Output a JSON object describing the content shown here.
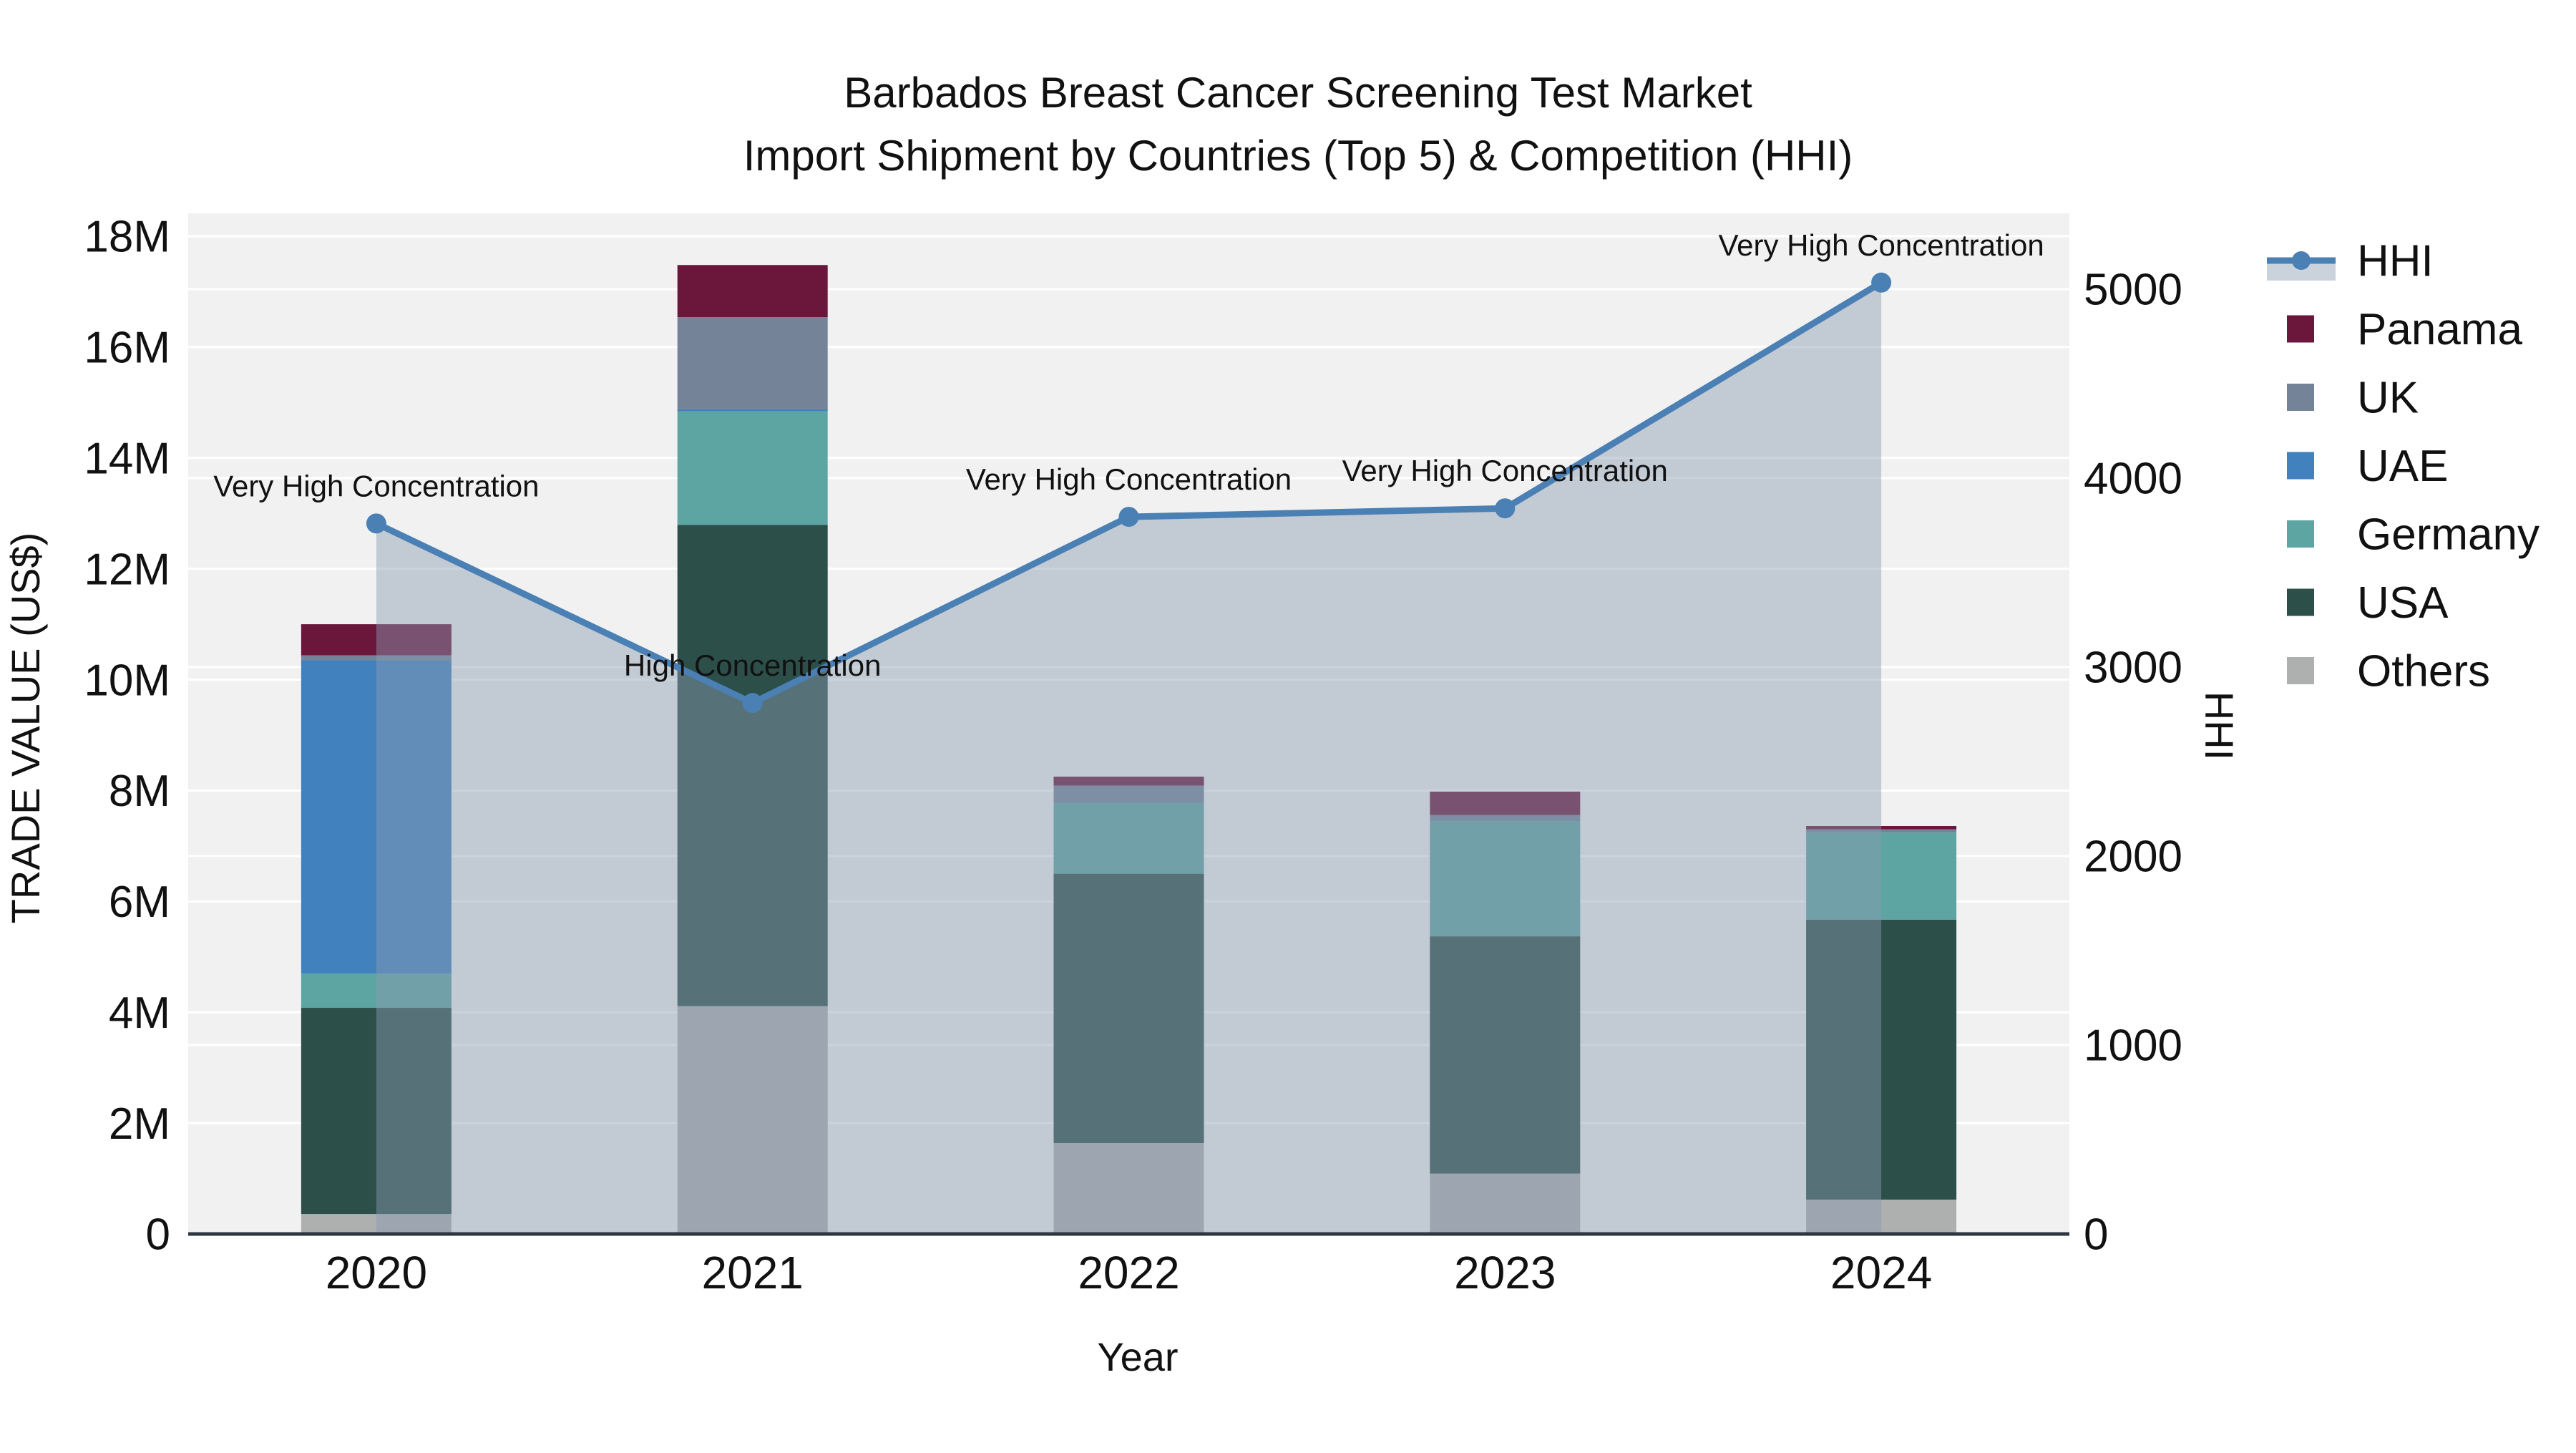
{
  "title": {
    "line1": "Barbados Breast Cancer Screening Test Market",
    "line2": "Import Shipment by Countries (Top 5) & Competition (HHI)"
  },
  "axes": {
    "x": {
      "title": "Year",
      "tick_labels": [
        "2020",
        "2021",
        "2022",
        "2023",
        "2024"
      ]
    },
    "y_left": {
      "title": "TRADE VALUE (US$)",
      "tick_labels": [
        "0",
        "2M",
        "4M",
        "6M",
        "8M",
        "10M",
        "12M",
        "14M",
        "16M",
        "18M"
      ],
      "tick_step_millions": 2,
      "max_millions": 18
    },
    "y_right": {
      "title": "HHI",
      "tick_labels": [
        "0",
        "1000",
        "2000",
        "3000",
        "4000",
        "5000"
      ],
      "tick_step": 1000,
      "max": 5280
    }
  },
  "legend": {
    "items": [
      {
        "label": "HHI",
        "type": "line-marker",
        "color": "#4a80b4",
        "band_color": "rgba(138,155,177,0.45)"
      },
      {
        "label": "Panama",
        "type": "swatch",
        "color": "#6a173b"
      },
      {
        "label": "UK",
        "type": "swatch",
        "color": "#758399"
      },
      {
        "label": "UAE",
        "type": "swatch",
        "color": "#4181bd"
      },
      {
        "label": "Germany",
        "type": "swatch",
        "color": "#5da5a3"
      },
      {
        "label": "USA",
        "type": "swatch",
        "color": "#2c4f49"
      },
      {
        "label": "Others",
        "type": "swatch",
        "color": "#aeb0af"
      }
    ]
  },
  "chart_data": {
    "type": "combo-stacked-bar-line",
    "x": [
      2020,
      2021,
      2022,
      2023,
      2024
    ],
    "bar_unit": "US$ millions",
    "bar_stack_order_bottom_to_top": [
      "Others",
      "USA",
      "Germany",
      "UAE",
      "UK",
      "Panama"
    ],
    "series": [
      {
        "name": "Others",
        "color": "#aeb0af",
        "values": [
          0.36,
          4.11,
          1.64,
          1.09,
          0.62
        ]
      },
      {
        "name": "USA",
        "color": "#2c4f49",
        "values": [
          3.72,
          8.68,
          4.86,
          4.28,
          5.05
        ]
      },
      {
        "name": "Germany",
        "color": "#5da5a3",
        "values": [
          0.62,
          2.05,
          1.28,
          2.08,
          1.57
        ]
      },
      {
        "name": "UAE",
        "color": "#4181bd",
        "values": [
          5.65,
          0.04,
          0.0,
          0.0,
          0.0
        ]
      },
      {
        "name": "UK",
        "color": "#758399",
        "values": [
          0.09,
          1.66,
          0.31,
          0.11,
          0.06
        ]
      },
      {
        "name": "Panama",
        "color": "#6a173b",
        "values": [
          0.56,
          0.94,
          0.16,
          0.42,
          0.06
        ]
      }
    ],
    "bar_totals_millions": [
      11.0,
      17.48,
      8.25,
      7.98,
      7.36
    ],
    "line_series": {
      "name": "HHI",
      "axis": "right",
      "color": "#4a80b4",
      "area_fill": "rgba(138,155,177,0.45)",
      "values": [
        3760,
        2810,
        3795,
        3840,
        5035
      ]
    },
    "annotations": [
      {
        "x": 2020,
        "label": "Very High Concentration"
      },
      {
        "x": 2021,
        "label": "High Concentration"
      },
      {
        "x": 2022,
        "label": "Very High Concentration"
      },
      {
        "x": 2023,
        "label": "Very High Concentration"
      },
      {
        "x": 2024,
        "label": "Very High Concentration"
      }
    ],
    "ylim_left_millions": [
      0,
      18
    ],
    "ylim_right": [
      0,
      5280
    ],
    "grid": true,
    "legend_position": "right",
    "plot_background": "#f1f1f1",
    "grid_color": "#ffffff",
    "axis_line_color": "#2e3640"
  }
}
